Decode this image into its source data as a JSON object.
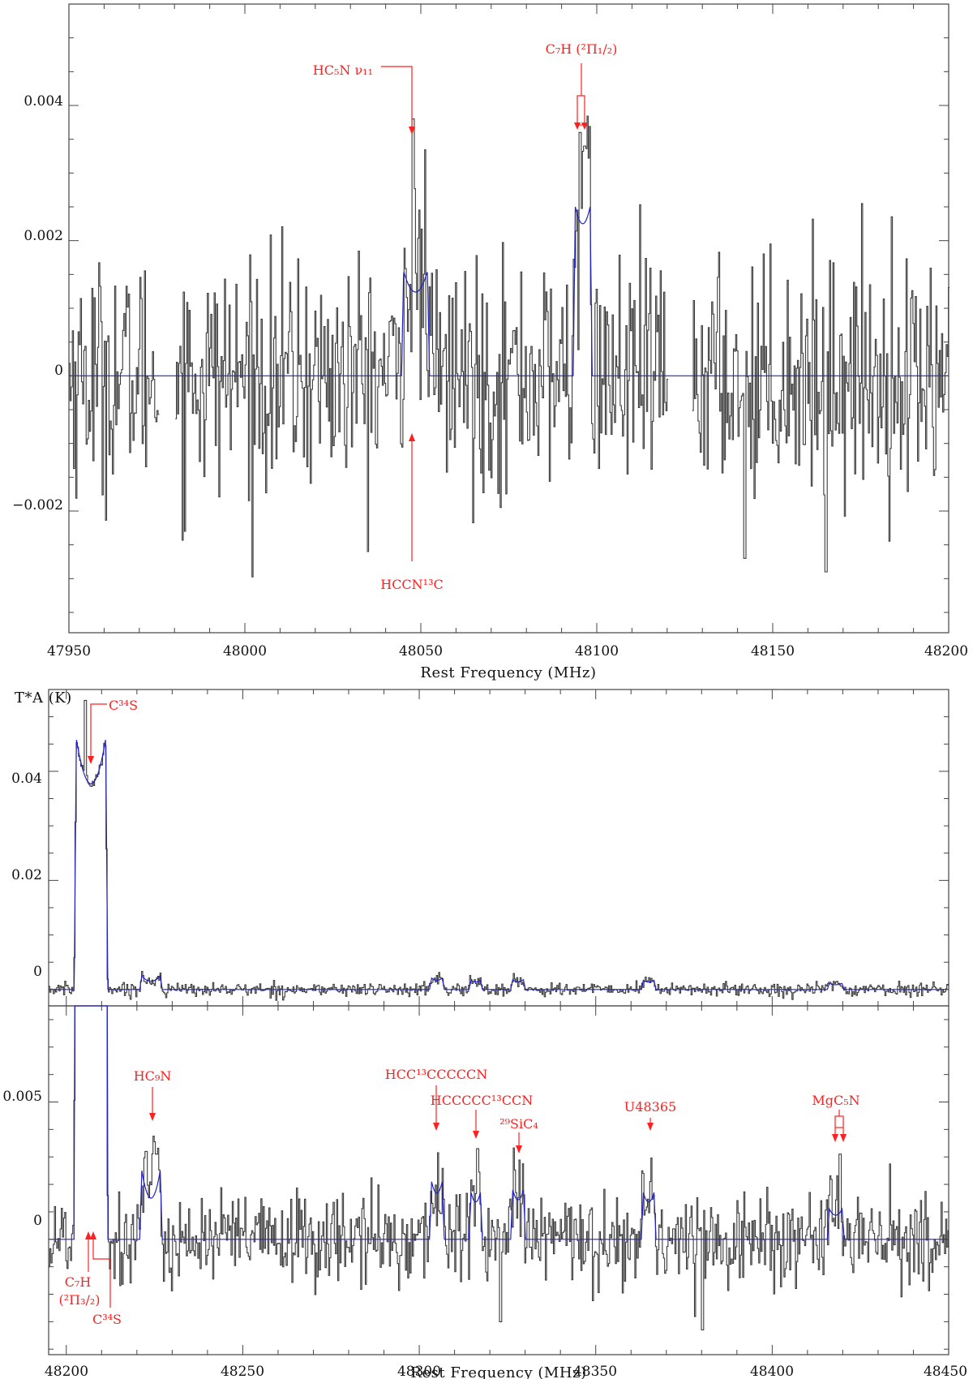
{
  "chart_data": [
    {
      "id": "panel-top",
      "type": "line",
      "xlabel": "Rest Frequency (MHz)",
      "ylabel": "",
      "xlim": [
        47950,
        48200
      ],
      "ylim": [
        -0.0038,
        0.0055
      ],
      "xticks": [
        47950,
        48000,
        48050,
        48100,
        48150,
        48200
      ],
      "yticks": [
        {
          "value": -0.002,
          "label": "−0.002"
        },
        {
          "value": 0,
          "label": "0"
        },
        {
          "value": 0.002,
          "label": "0.002"
        },
        {
          "value": 0.004,
          "label": "0.004"
        }
      ],
      "noise": 0.00085,
      "gaps": [
        [
          47975.5,
          47980
        ],
        [
          48120,
          48127
        ]
      ],
      "spikes": [
        [
          48047.5,
          0.0038
        ],
        [
          48095,
          0.0036
        ],
        [
          48096.5,
          0.0034
        ],
        [
          48165,
          -0.0029
        ],
        [
          48142,
          -0.0027
        ]
      ],
      "series": [
        {
          "role": "model",
          "color": "#2222cc",
          "lines": [
            {
              "center": 48048.5,
              "height": 0.00155,
              "width": 1.3,
              "split": 2.6,
              "dip": 0.8
            },
            {
              "center": 48096.0,
              "height": 0.0025,
              "width": 1.5,
              "split": 1.4,
              "dip": 0.9
            }
          ]
        }
      ],
      "annotations": [
        {
          "text": "HC₅N ν₁₁",
          "x": 48048.0,
          "position": "above"
        },
        {
          "text": "C₇H (²Π₁/₂)",
          "x": 48096.0,
          "position": "above"
        },
        {
          "text": "HCCN¹³C",
          "x": 48048.0,
          "position": "below"
        }
      ]
    },
    {
      "id": "panel-mid",
      "type": "line",
      "xlabel": "",
      "ylabel": "T*A (K)",
      "xlim": [
        48195,
        48450
      ],
      "ylim": [
        -0.003,
        0.055
      ],
      "xticks": [],
      "yticks": [
        {
          "value": 0,
          "label": "0"
        },
        {
          "value": 0.02,
          "label": "0.02"
        },
        {
          "value": 0.04,
          "label": "0.04"
        }
      ],
      "noise": 0.0006,
      "gaps": [],
      "spikes": [
        [
          48205.2,
          0.053
        ]
      ],
      "series": [
        {
          "role": "model",
          "color": "#2222cc",
          "lines": [
            {
              "center": 48207.0,
              "height": 0.046,
              "width": 1.6,
              "split": 2.6,
              "dip": 0.82
            },
            {
              "center": 48224.0,
              "height": 0.0025,
              "width": 1.3,
              "split": 2.0,
              "dip": 0.6
            },
            {
              "center": 48305.0,
              "height": 0.0021,
              "width": 1.5,
              "split": 1.0,
              "dip": 0.8
            },
            {
              "center": 48316.0,
              "height": 0.0017,
              "width": 1.3,
              "split": 1.0,
              "dip": 0.8
            },
            {
              "center": 48328.0,
              "height": 0.0018,
              "width": 1.5,
              "split": 1.0,
              "dip": 0.8
            },
            {
              "center": 48365.0,
              "height": 0.0017,
              "width": 1.5,
              "split": 1.0,
              "dip": 0.8
            },
            {
              "center": 48418.0,
              "height": 0.0011,
              "width": 1.5,
              "split": 1.2,
              "dip": 0.8
            }
          ]
        }
      ],
      "annotations": [
        {
          "text": "C³⁴S",
          "x": 48207.0,
          "position": "above"
        }
      ]
    },
    {
      "id": "panel-bot",
      "type": "line",
      "xlabel": "Rest Frequency (MHz)",
      "ylabel": "",
      "xlim": [
        48195,
        48450
      ],
      "ylim": [
        -0.0042,
        0.0085
      ],
      "xticks": [
        48200,
        48250,
        48300,
        48350,
        48400,
        48450
      ],
      "yticks": [
        {
          "value": 0,
          "label": "0"
        },
        {
          "value": 0.005,
          "label": "0.005"
        }
      ],
      "noise": 0.00085,
      "gaps": [],
      "spikes": [
        [
          48222.5,
          0.0032
        ],
        [
          48225.5,
          0.0031
        ],
        [
          48316.5,
          0.0033
        ],
        [
          48419,
          0.0031
        ],
        [
          48380,
          -0.0033
        ],
        [
          48323,
          -0.003
        ]
      ],
      "series": [
        {
          "role": "model",
          "color": "#2222cc",
          "lines": [
            {
              "center": 48207.0,
              "height": 0.046,
              "width": 1.6,
              "split": 2.6,
              "dip": 0.82
            },
            {
              "center": 48224.0,
              "height": 0.0025,
              "width": 1.3,
              "split": 2.0,
              "dip": 0.6
            },
            {
              "center": 48305.0,
              "height": 0.0021,
              "width": 1.5,
              "split": 1.0,
              "dip": 0.8
            },
            {
              "center": 48316.0,
              "height": 0.0017,
              "width": 1.3,
              "split": 1.0,
              "dip": 0.8
            },
            {
              "center": 48328.0,
              "height": 0.0018,
              "width": 1.5,
              "split": 1.0,
              "dip": 0.8
            },
            {
              "center": 48365.0,
              "height": 0.0017,
              "width": 1.5,
              "split": 1.0,
              "dip": 0.8
            },
            {
              "center": 48418.0,
              "height": 0.0011,
              "width": 1.5,
              "split": 1.2,
              "dip": 0.8
            }
          ]
        }
      ],
      "annotations": [
        {
          "text": "HC₉N",
          "x": 48224.0,
          "position": "above"
        },
        {
          "text": "HCC¹³CCCCCN",
          "x": 48305.0,
          "position": "above"
        },
        {
          "text": "HCCCCC¹³CCN",
          "x": 48316.0,
          "position": "above"
        },
        {
          "text": "²⁹SiC₄",
          "x": 48328.0,
          "position": "above"
        },
        {
          "text": "U48365",
          "x": 48365.0,
          "position": "above"
        },
        {
          "text": "MgC₅N",
          "x": 48418.0,
          "position": "above"
        },
        {
          "text": "C₇H",
          "x": 48207.0,
          "position": "below"
        },
        {
          "text": "(²Π₃/₂)",
          "x": 48207.0,
          "position": "below"
        },
        {
          "text": "C³⁴S",
          "x": 48208.0,
          "position": "below"
        }
      ]
    }
  ]
}
